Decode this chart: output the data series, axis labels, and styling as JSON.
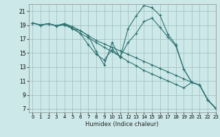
{
  "xlabel": "Humidex (Indice chaleur)",
  "bg_color": "#cde8e8",
  "grid_color": "#9bbcbc",
  "line_color": "#2d7070",
  "xlim": [
    -0.5,
    23
  ],
  "ylim": [
    6.5,
    22
  ],
  "yticks": [
    7,
    9,
    11,
    13,
    15,
    17,
    19,
    21
  ],
  "xticks": [
    0,
    1,
    2,
    3,
    4,
    5,
    6,
    7,
    8,
    9,
    10,
    11,
    12,
    13,
    14,
    15,
    16,
    17,
    18,
    19,
    20,
    21,
    22,
    23
  ],
  "lines": [
    {
      "x": [
        0,
        1,
        2,
        3,
        4,
        5,
        6,
        7,
        8,
        9,
        10,
        11,
        12,
        13,
        14,
        15,
        16,
        17,
        18,
        19,
        20,
        21,
        22,
        23
      ],
      "y": [
        19.3,
        19.0,
        19.2,
        18.9,
        19.2,
        18.8,
        18.2,
        17.5,
        15.2,
        13.3,
        16.5,
        14.3,
        18.5,
        20.3,
        21.8,
        21.5,
        20.4,
        17.7,
        16.2,
        12.7,
        10.8,
        10.4,
        8.3,
        7.1
      ]
    },
    {
      "x": [
        0,
        1,
        2,
        3,
        4,
        5,
        6,
        7,
        8,
        9,
        10,
        11,
        12,
        13,
        14,
        15,
        16,
        17,
        18,
        19,
        20,
        21,
        22,
        23
      ],
      "y": [
        19.3,
        19.0,
        19.2,
        18.9,
        19.2,
        18.6,
        17.8,
        16.2,
        14.8,
        14.0,
        15.5,
        14.5,
        16.5,
        17.8,
        19.5,
        20.0,
        18.7,
        17.3,
        16.0,
        12.7,
        10.8,
        10.4,
        8.3,
        7.1
      ]
    },
    {
      "x": [
        0,
        1,
        2,
        3,
        4,
        5,
        6,
        7,
        8,
        9,
        10,
        11,
        12,
        13,
        14,
        15,
        16,
        17,
        18,
        19,
        20,
        21,
        22,
        23
      ],
      "y": [
        19.3,
        19.0,
        19.2,
        18.9,
        19.2,
        18.5,
        18.2,
        17.5,
        16.8,
        16.3,
        15.8,
        15.3,
        14.8,
        14.3,
        13.8,
        13.3,
        12.8,
        12.3,
        11.8,
        11.3,
        10.8,
        10.4,
        8.3,
        7.1
      ]
    },
    {
      "x": [
        0,
        1,
        2,
        3,
        4,
        5,
        6,
        7,
        8,
        9,
        10,
        11,
        12,
        13,
        14,
        15,
        16,
        17,
        18,
        19,
        20,
        21,
        22,
        23
      ],
      "y": [
        19.3,
        19.0,
        19.2,
        18.9,
        19.0,
        18.5,
        17.8,
        17.2,
        16.5,
        15.8,
        15.2,
        14.5,
        13.8,
        13.2,
        12.5,
        12.0,
        11.5,
        11.0,
        10.5,
        10.0,
        10.8,
        10.4,
        8.3,
        7.1
      ]
    }
  ]
}
